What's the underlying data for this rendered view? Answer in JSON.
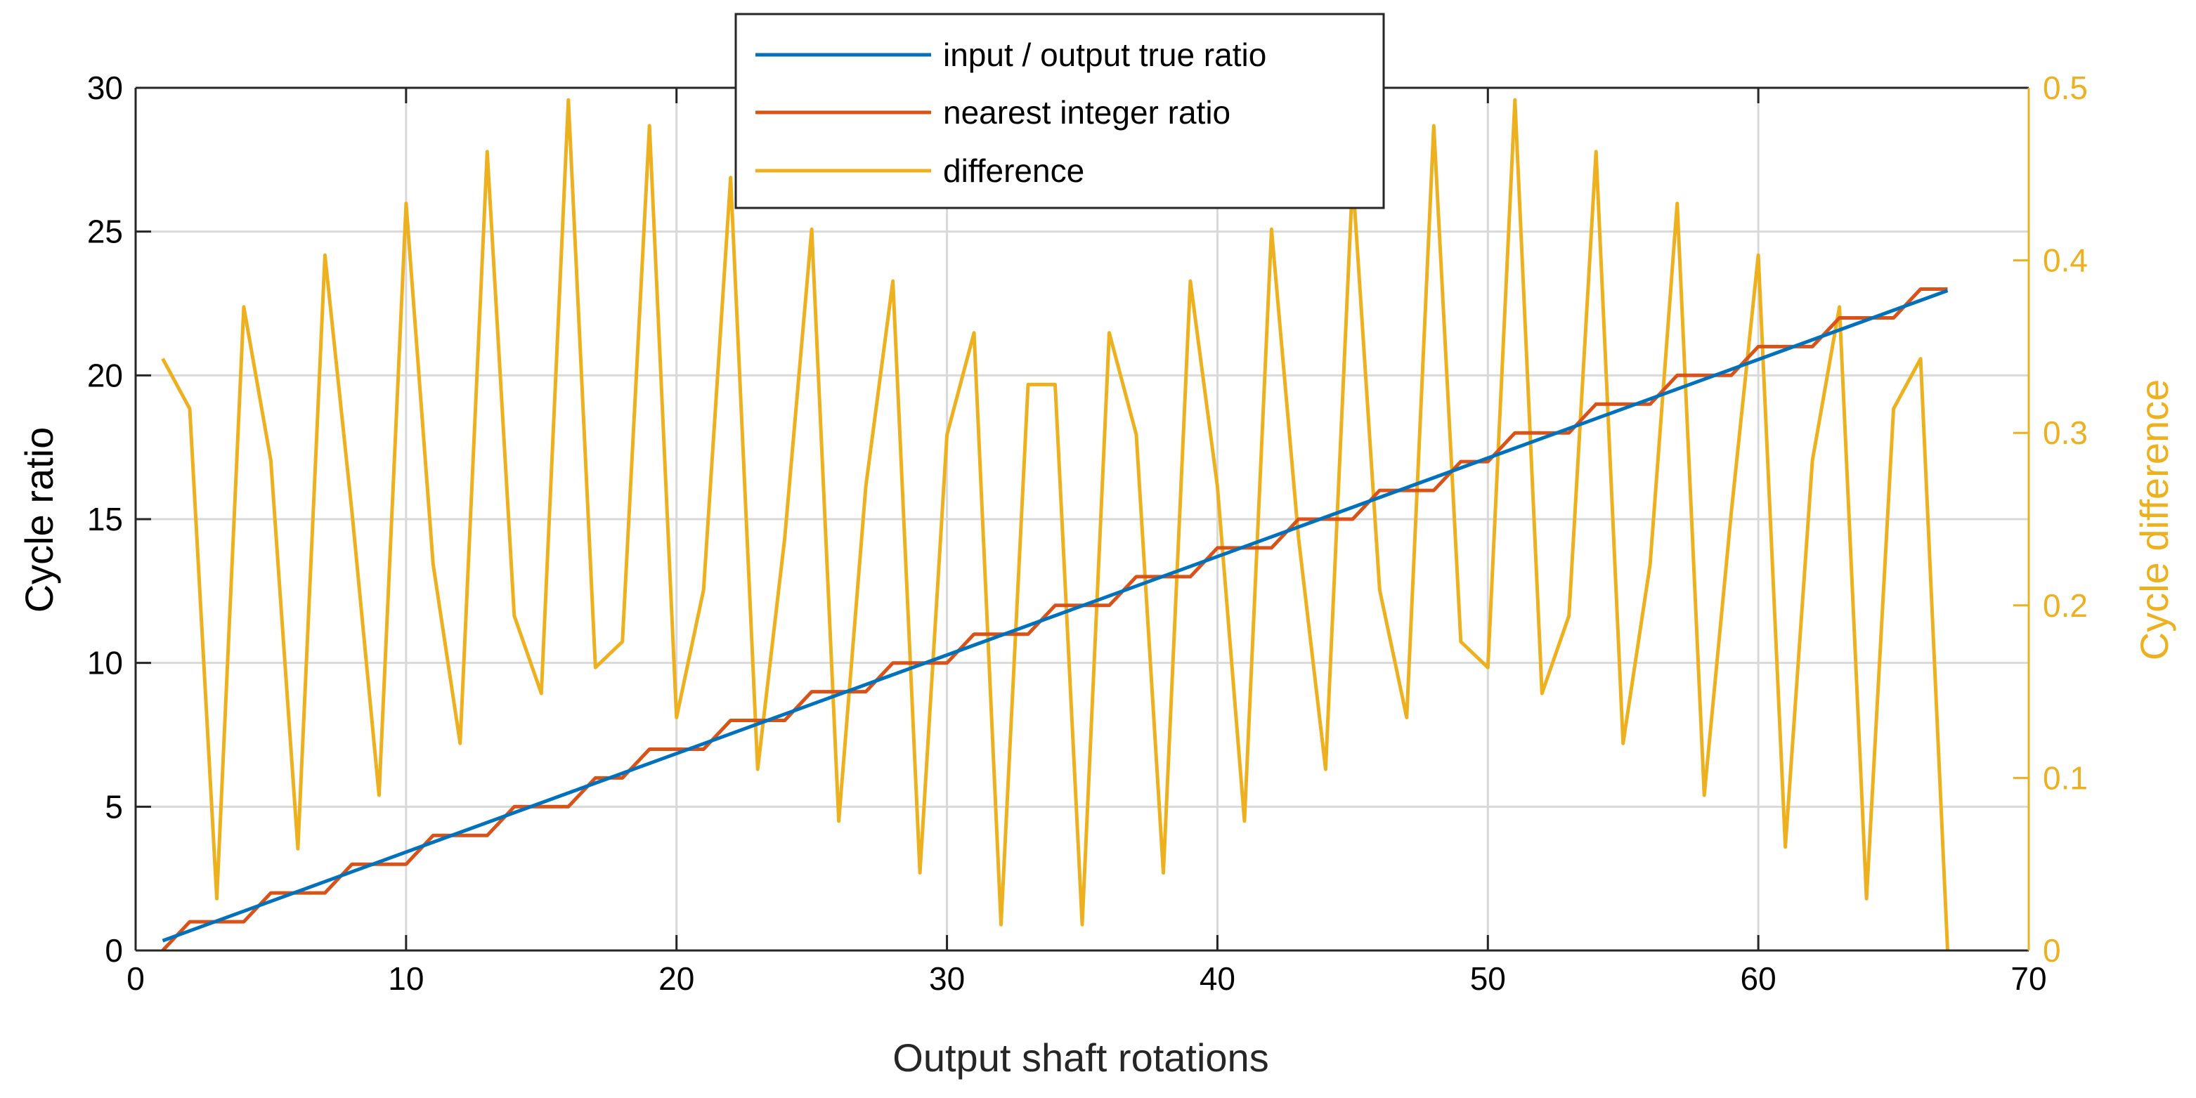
{
  "chart_data": {
    "type": "line",
    "xlabel": "Output shaft rotations",
    "ylabel_left": "Cycle ratio",
    "ylabel_right": "Cycle difference",
    "xlim": [
      0,
      70
    ],
    "ylim_left": [
      0,
      30
    ],
    "ylim_right": [
      0,
      0.5
    ],
    "grid": true,
    "legend_position": "top-center",
    "x_ticks": [
      "0",
      "10",
      "20",
      "30",
      "40",
      "50",
      "60",
      "70"
    ],
    "y_ticks_left": [
      "0",
      "5",
      "10",
      "15",
      "20",
      "25",
      "30"
    ],
    "y_ticks_right": [
      "0",
      "0.1",
      "0.2",
      "0.3",
      "0.4",
      "0.5"
    ],
    "colors": {
      "true_ratio": "#0072BD",
      "integer_ratio": "#D95319",
      "difference": "#EDB120",
      "grid": "#d9d9d9",
      "axis": "#262626"
    },
    "series": [
      {
        "name": "input / output true ratio",
        "axis": "left",
        "x": [
          1,
          67
        ],
        "values": [
          0.34,
          22.95
        ]
      },
      {
        "name": "nearest integer ratio",
        "axis": "left",
        "x": [
          1,
          2,
          3,
          4,
          5,
          6,
          7,
          8,
          9,
          10,
          11,
          12,
          13,
          14,
          15,
          16,
          17,
          18,
          19,
          20,
          21,
          22,
          23,
          24,
          25,
          26,
          27,
          28,
          29,
          30,
          31,
          32,
          33,
          34,
          35,
          36,
          37,
          38,
          39,
          40,
          41,
          42,
          43,
          44,
          45,
          46,
          47,
          48,
          49,
          50,
          51,
          52,
          53,
          54,
          55,
          56,
          57,
          58,
          59,
          60,
          61,
          62,
          63,
          64,
          65,
          66,
          67
        ],
        "values": [
          0,
          1,
          1,
          1,
          2,
          2,
          2,
          3,
          3,
          3,
          4,
          4,
          4,
          5,
          5,
          5,
          6,
          6,
          7,
          7,
          7,
          8,
          8,
          8,
          9,
          9,
          9,
          10,
          10,
          10,
          11,
          11,
          11,
          12,
          12,
          12,
          13,
          13,
          13,
          14,
          14,
          14,
          15,
          15,
          15,
          16,
          16,
          16,
          17,
          17,
          18,
          18,
          18,
          19,
          19,
          19,
          20,
          20,
          20,
          21,
          21,
          21,
          22,
          22,
          22,
          23,
          23
        ]
      },
      {
        "name": "difference",
        "axis": "right",
        "x": [
          1,
          2,
          3,
          4,
          5,
          6,
          7,
          8,
          9,
          10,
          11,
          12,
          13,
          14,
          15,
          16,
          17,
          18,
          19,
          20,
          21,
          22,
          23,
          24,
          25,
          26,
          27,
          28,
          29,
          30,
          31,
          32,
          33,
          34,
          35,
          36,
          37,
          38,
          39,
          40,
          41,
          42,
          43,
          44,
          45,
          46,
          47,
          48,
          49,
          50,
          51,
          52,
          53,
          54,
          55,
          56,
          57,
          58,
          59,
          60,
          61,
          62,
          63,
          64,
          65,
          66,
          67
        ],
        "values": [
          0.343,
          0.314,
          0.03,
          0.373,
          0.284,
          0.059,
          0.403,
          0.254,
          0.09,
          0.433,
          0.224,
          0.12,
          0.463,
          0.194,
          0.149,
          0.493,
          0.164,
          0.179,
          0.478,
          0.135,
          0.209,
          0.448,
          0.105,
          0.239,
          0.418,
          0.075,
          0.269,
          0.388,
          0.045,
          0.299,
          0.358,
          0.015,
          0.328,
          0.328,
          0.015,
          0.358,
          0.299,
          0.045,
          0.388,
          0.269,
          0.075,
          0.418,
          0.239,
          0.105,
          0.448,
          0.209,
          0.135,
          0.478,
          0.179,
          0.164,
          0.493,
          0.149,
          0.194,
          0.463,
          0.12,
          0.224,
          0.433,
          0.09,
          0.254,
          0.403,
          0.06,
          0.284,
          0.373,
          0.03,
          0.314,
          0.343,
          0.0
        ]
      }
    ]
  }
}
